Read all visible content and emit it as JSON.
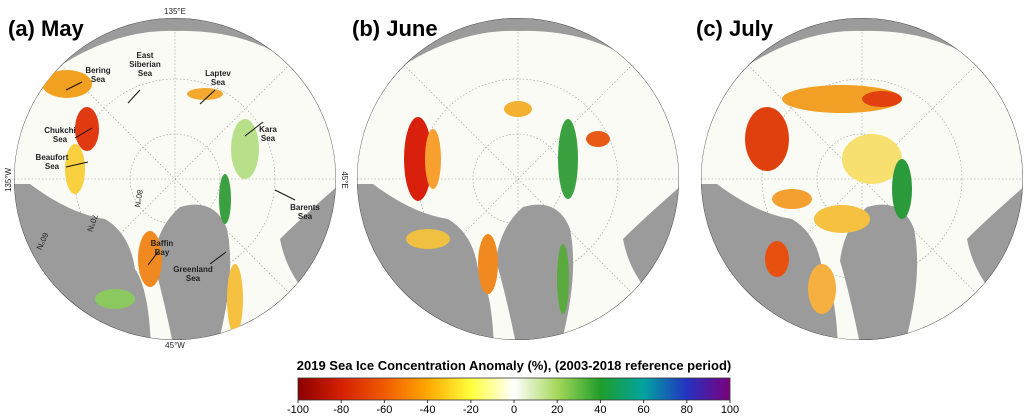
{
  "panels": [
    {
      "title": "(a) May"
    },
    {
      "title": "(b) June"
    },
    {
      "title": "(c) July"
    }
  ],
  "regions": [
    {
      "lines": [
        "Bering",
        "Sea"
      ]
    },
    {
      "lines": [
        "East",
        "Siberian",
        "Sea"
      ]
    },
    {
      "lines": [
        "Laptev",
        "Sea"
      ]
    },
    {
      "lines": [
        "Kara",
        "Sea"
      ]
    },
    {
      "lines": [
        "Chukchi",
        "Sea"
      ]
    },
    {
      "lines": [
        "Beaufort",
        "Sea"
      ]
    },
    {
      "lines": [
        "Barents",
        "Sea"
      ]
    },
    {
      "lines": [
        "Baffin",
        "Bay"
      ]
    },
    {
      "lines": [
        "Greenland",
        "Sea"
      ]
    }
  ],
  "graticule": [
    "135°E",
    "45°E",
    "45°W",
    "135°W",
    "80°N",
    "70°N",
    "60°N"
  ],
  "colorbar": {
    "title": "2019 Sea Ice Concentration Anomaly (%), (2003-2018 reference period)",
    "lim": [
      -100,
      100
    ],
    "ticks": [
      -100,
      -80,
      -60,
      -40,
      -20,
      0,
      20,
      40,
      60,
      80,
      100
    ],
    "colors": [
      "#8b0000",
      "#d42000",
      "#f05a00",
      "#ffa800",
      "#ffff3c",
      "#ffffff",
      "#a6d85a",
      "#1f9e2a",
      "#00a3a0",
      "#2432c0",
      "#7d007d"
    ]
  }
}
